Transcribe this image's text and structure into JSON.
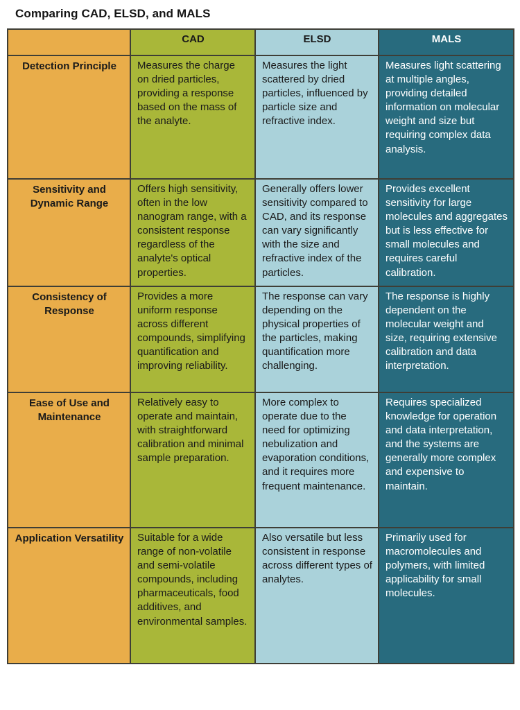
{
  "title": "Comparing CAD, ELSD, and MALS",
  "table": {
    "columns": [
      "",
      "CAD",
      "ELSD",
      "MALS"
    ],
    "rows": [
      {
        "label": "Detection Principle",
        "cad": "Measures the charge on dried particles, providing a response based on the mass of the analyte.",
        "elsd": "Measures the light scattered by dried particles, influenced by particle size and refractive index.",
        "mals": "Measures light scattering at multiple angles, providing detailed information on molecular weight and size but requiring complex data analysis."
      },
      {
        "label": "Sensitivity and Dynamic Range",
        "cad": "Offers high sensitivity, often in the low nanogram range, with a consistent response regardless of the analyte's optical properties.",
        "elsd": "Generally offers lower sensitivity compared to CAD, and its response can vary significantly with the size and refractive index of the particles.",
        "mals": "Provides excellent sensitivity for large molecules and aggregates but is less effective for small molecules and requires careful calibration."
      },
      {
        "label": "Consistency of Response",
        "cad": "Provides a more uniform response across different compounds, simplifying quantification and improving reliability.",
        "elsd": "The response can vary depending on the physical properties of the particles, making quantification more challenging.",
        "mals": "The response is highly dependent on the molecular weight and size, requiring extensive calibration and data interpretation."
      },
      {
        "label": "Ease of Use and Maintenance",
        "cad": "Relatively easy to operate and maintain, with straightforward calibration and minimal sample preparation.",
        "elsd": "More complex to operate due to the need for optimizing nebulization and evaporation conditions, and it requires more frequent maintenance.",
        "mals": "Requires specialized knowledge for operation and data interpretation, and the systems are generally more complex and expensive to maintain."
      },
      {
        "label": "Application Versatility",
        "cad": "Suitable for a wide range of non-volatile and semi-volatile compounds, including pharmaceuticals, food additives, and environmental samples.",
        "elsd": "Also versatile but less consistent in response across different types of analytes.",
        "mals": "Primarily used for macromolecules and polymers, with limited applicability for small molecules."
      }
    ]
  },
  "colors": {
    "label_col": "#E9AD4A",
    "cad_col": "#A9B739",
    "elsd_col": "#AAD2DA",
    "mals_col": "#286B7E",
    "border": "#3E3E36",
    "text_dark": "#1A1A1A",
    "text_light": "#FFFFFF"
  }
}
